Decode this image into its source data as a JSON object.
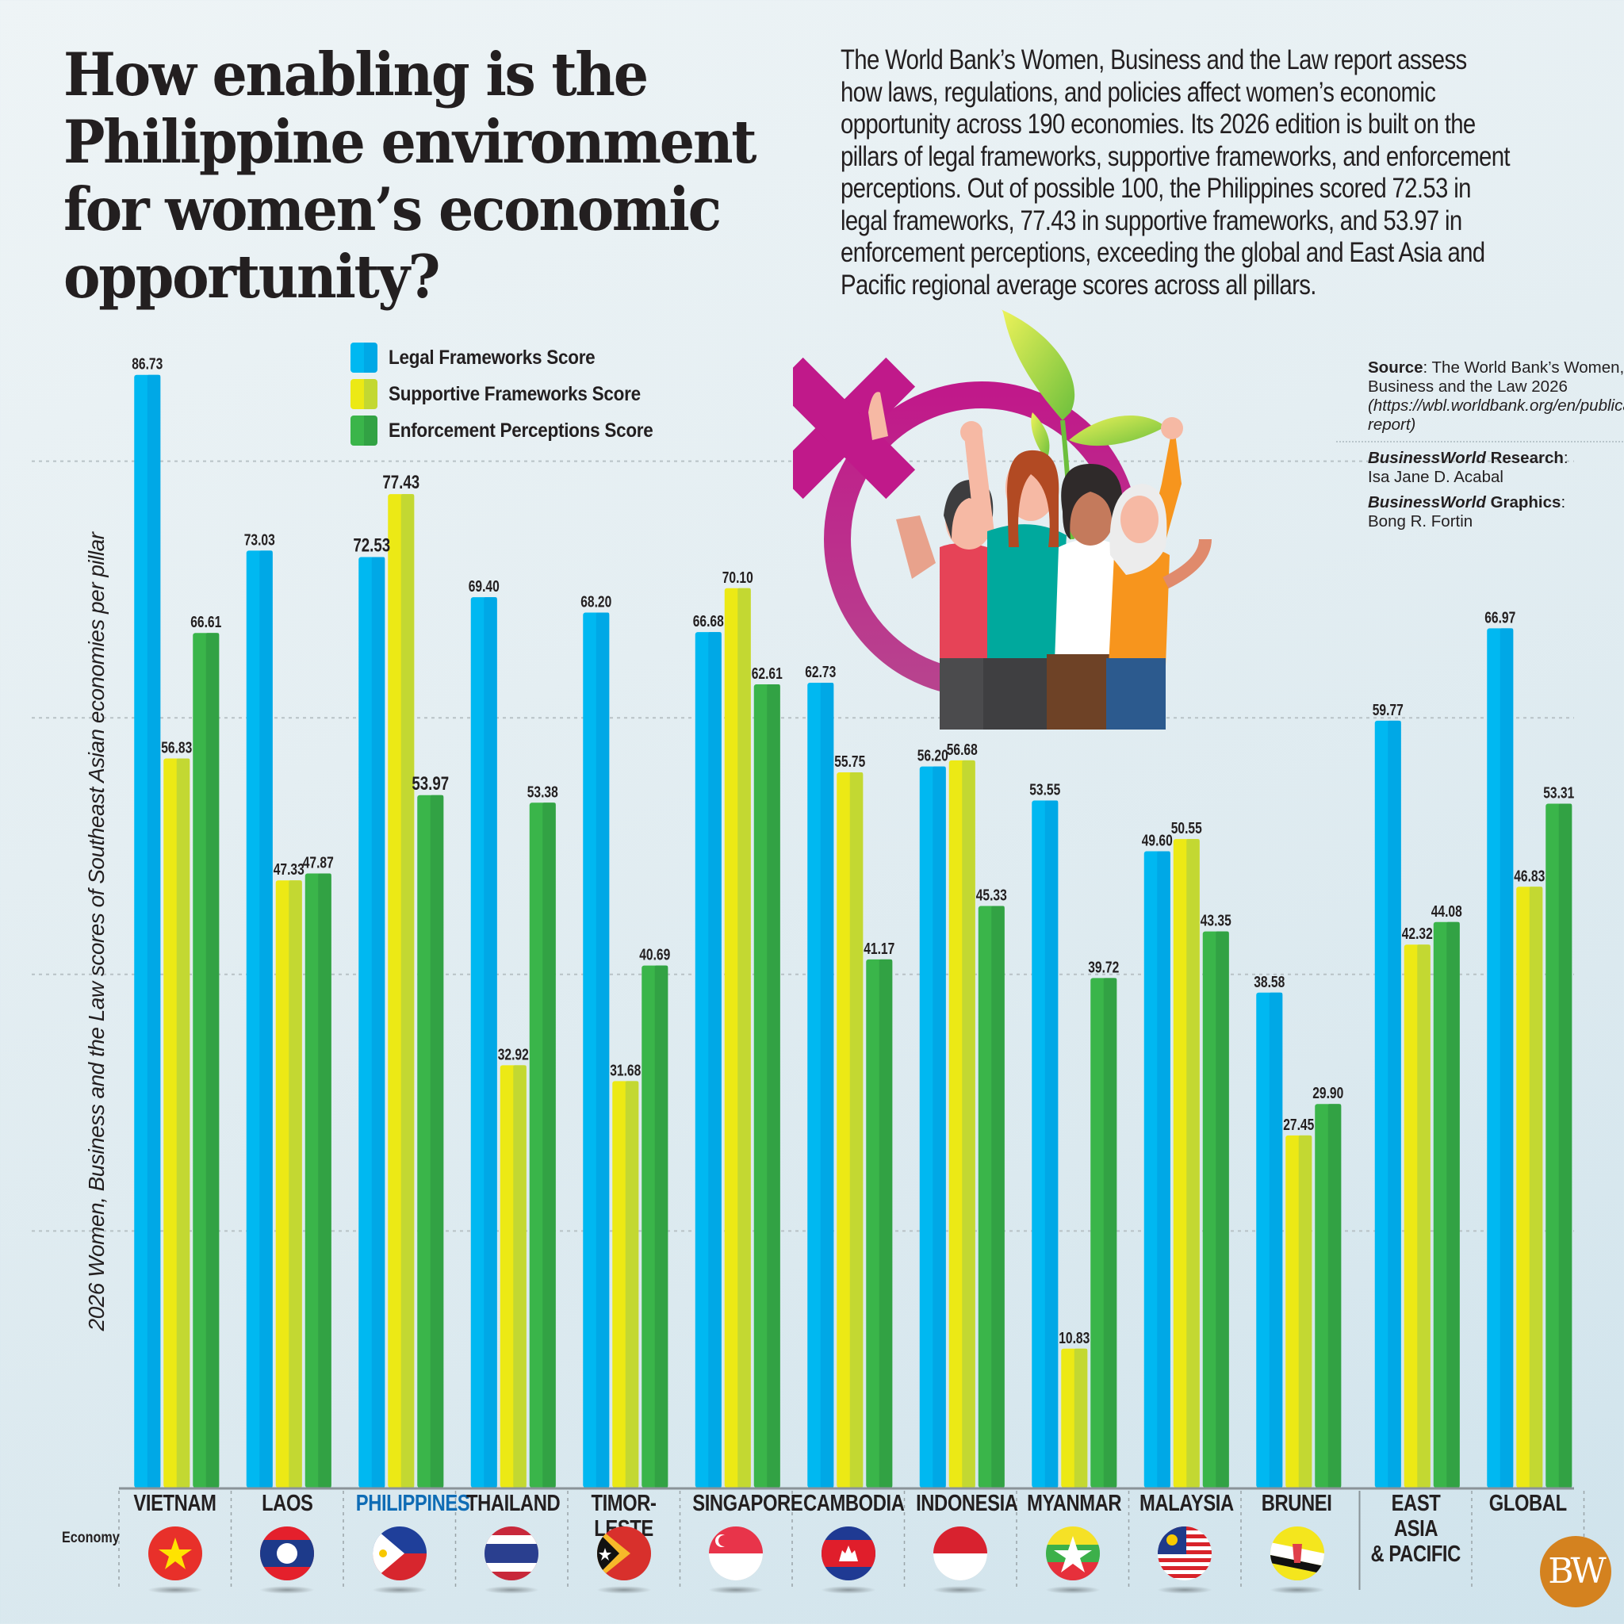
{
  "header": {
    "title": "How enabling is the Philippine environment for women’s economic opportunity?",
    "intro": "The World Bank’s Women, Business and the Law report assess how laws, regulations, and policies affect women’s economic opportunity across 190 economies. Its 2026 edition is built on the pillars of legal frameworks, supportive frameworks, and enforcement perceptions. Out of possible 100, the Philippines scored 72.53 in legal frameworks, 77.43 in supportive frameworks, and 53.97 in enforcement perceptions, exceeding the global and East Asia and Pacific regional average scores across all pillars."
  },
  "credits": {
    "source_label": "Source",
    "source_text": "The World Bank’s Women, Business and the Law 2026",
    "source_link": "(https://wbl.worldbank.org/en/publications/flagship-report)",
    "research_brand": "BusinessWorld",
    "research_label": "Research",
    "research_name": "Isa Jane D. Acabal",
    "graphics_brand": "BusinessWorld",
    "graphics_label": "Graphics",
    "graphics_name": "Bong R. Fortin"
  },
  "logo": {
    "text": "BW",
    "color": "#d4821f"
  },
  "illustration": {
    "description": "Female gender symbol with four diverse women cheering and a green sprout",
    "symbol_color": "#c0198a"
  },
  "colors": {
    "legal": "#00b2ee",
    "supportive": "#e9e612",
    "enforcement": "#38b04a",
    "highlight_label": "#0f6cb5"
  },
  "chart_data": {
    "type": "bar",
    "title": "How enabling is the Philippine environment for women’s economic opportunity?",
    "xlabel": "Economy",
    "ylabel": "2026 Women, Business and the Law scores of Southeast Asian economies per pillar",
    "ylim": [
      0,
      100
    ],
    "gridlines": [
      20,
      40,
      60,
      80
    ],
    "grid": true,
    "legend_position": "top-left",
    "categories": [
      "VIETNAM",
      "LAOS",
      "PHILIPPINES",
      "THAILAND",
      "TIMOR-LESTE",
      "SINGAPORE",
      "CAMBODIA",
      "INDONESIA",
      "MYANMAR",
      "MALAYSIA",
      "BRUNEI",
      "EAST ASIA & PACIFIC",
      "GLOBAL"
    ],
    "highlight_category": "PHILIPPINES",
    "series": [
      {
        "name": "Legal Frameworks Score",
        "color": "#00b2ee",
        "values": [
          86.73,
          73.03,
          72.53,
          69.4,
          68.2,
          66.68,
          62.73,
          56.2,
          53.55,
          49.6,
          38.58,
          59.77,
          66.97
        ],
        "labels": [
          "86.73",
          "73.03",
          "72.53",
          "69.40",
          "68.20",
          "66.68",
          "62.73",
          "56.20",
          "53.55",
          "49.60",
          "38.58",
          "59.77",
          "66.97"
        ]
      },
      {
        "name": "Supportive Frameworks Score",
        "color": "#e9e612",
        "values": [
          56.83,
          47.33,
          77.43,
          32.92,
          31.68,
          70.1,
          55.75,
          56.68,
          10.83,
          50.55,
          27.45,
          42.32,
          46.83
        ],
        "labels": [
          "56.83",
          "47.33",
          "77.43",
          "32.92",
          "31.68",
          "70.10",
          "55.75",
          "56.68",
          "10.83",
          "50.55",
          "27.45",
          "42.32",
          "46.83"
        ]
      },
      {
        "name": "Enforcement Perceptions Score",
        "color": "#38b04a",
        "values": [
          66.61,
          47.87,
          53.97,
          53.38,
          40.69,
          62.61,
          41.17,
          45.33,
          39.72,
          43.35,
          29.9,
          44.08,
          53.31
        ],
        "labels": [
          "66.61",
          "47.87",
          "53.97",
          "53.38",
          "40.69",
          "62.61",
          "41.17",
          "45.33",
          "39.72",
          "43.35",
          "29.90",
          "44.08",
          "53.31"
        ]
      }
    ]
  },
  "axis": {
    "economy_label": "Economy",
    "categories_display": [
      [
        "VIETNAM"
      ],
      [
        "LAOS"
      ],
      [
        "PHILIPPINES"
      ],
      [
        "THAILAND"
      ],
      [
        "TIMOR-LESTE"
      ],
      [
        "SINGAPORE"
      ],
      [
        "CAMBODIA"
      ],
      [
        "INDONESIA"
      ],
      [
        "MYANMAR"
      ],
      [
        "MALAYSIA"
      ],
      [
        "BRUNEI"
      ],
      [
        "EAST ASIA",
        "& PACIFIC"
      ],
      [
        "GLOBAL"
      ]
    ],
    "flags": [
      "vietnam-flag",
      "laos-flag",
      "philippines-flag",
      "thailand-flag",
      "timor-leste-flag",
      "singapore-flag",
      "cambodia-flag",
      "indonesia-flag",
      "myanmar-flag",
      "malaysia-flag",
      "brunei-flag",
      null,
      null
    ]
  }
}
